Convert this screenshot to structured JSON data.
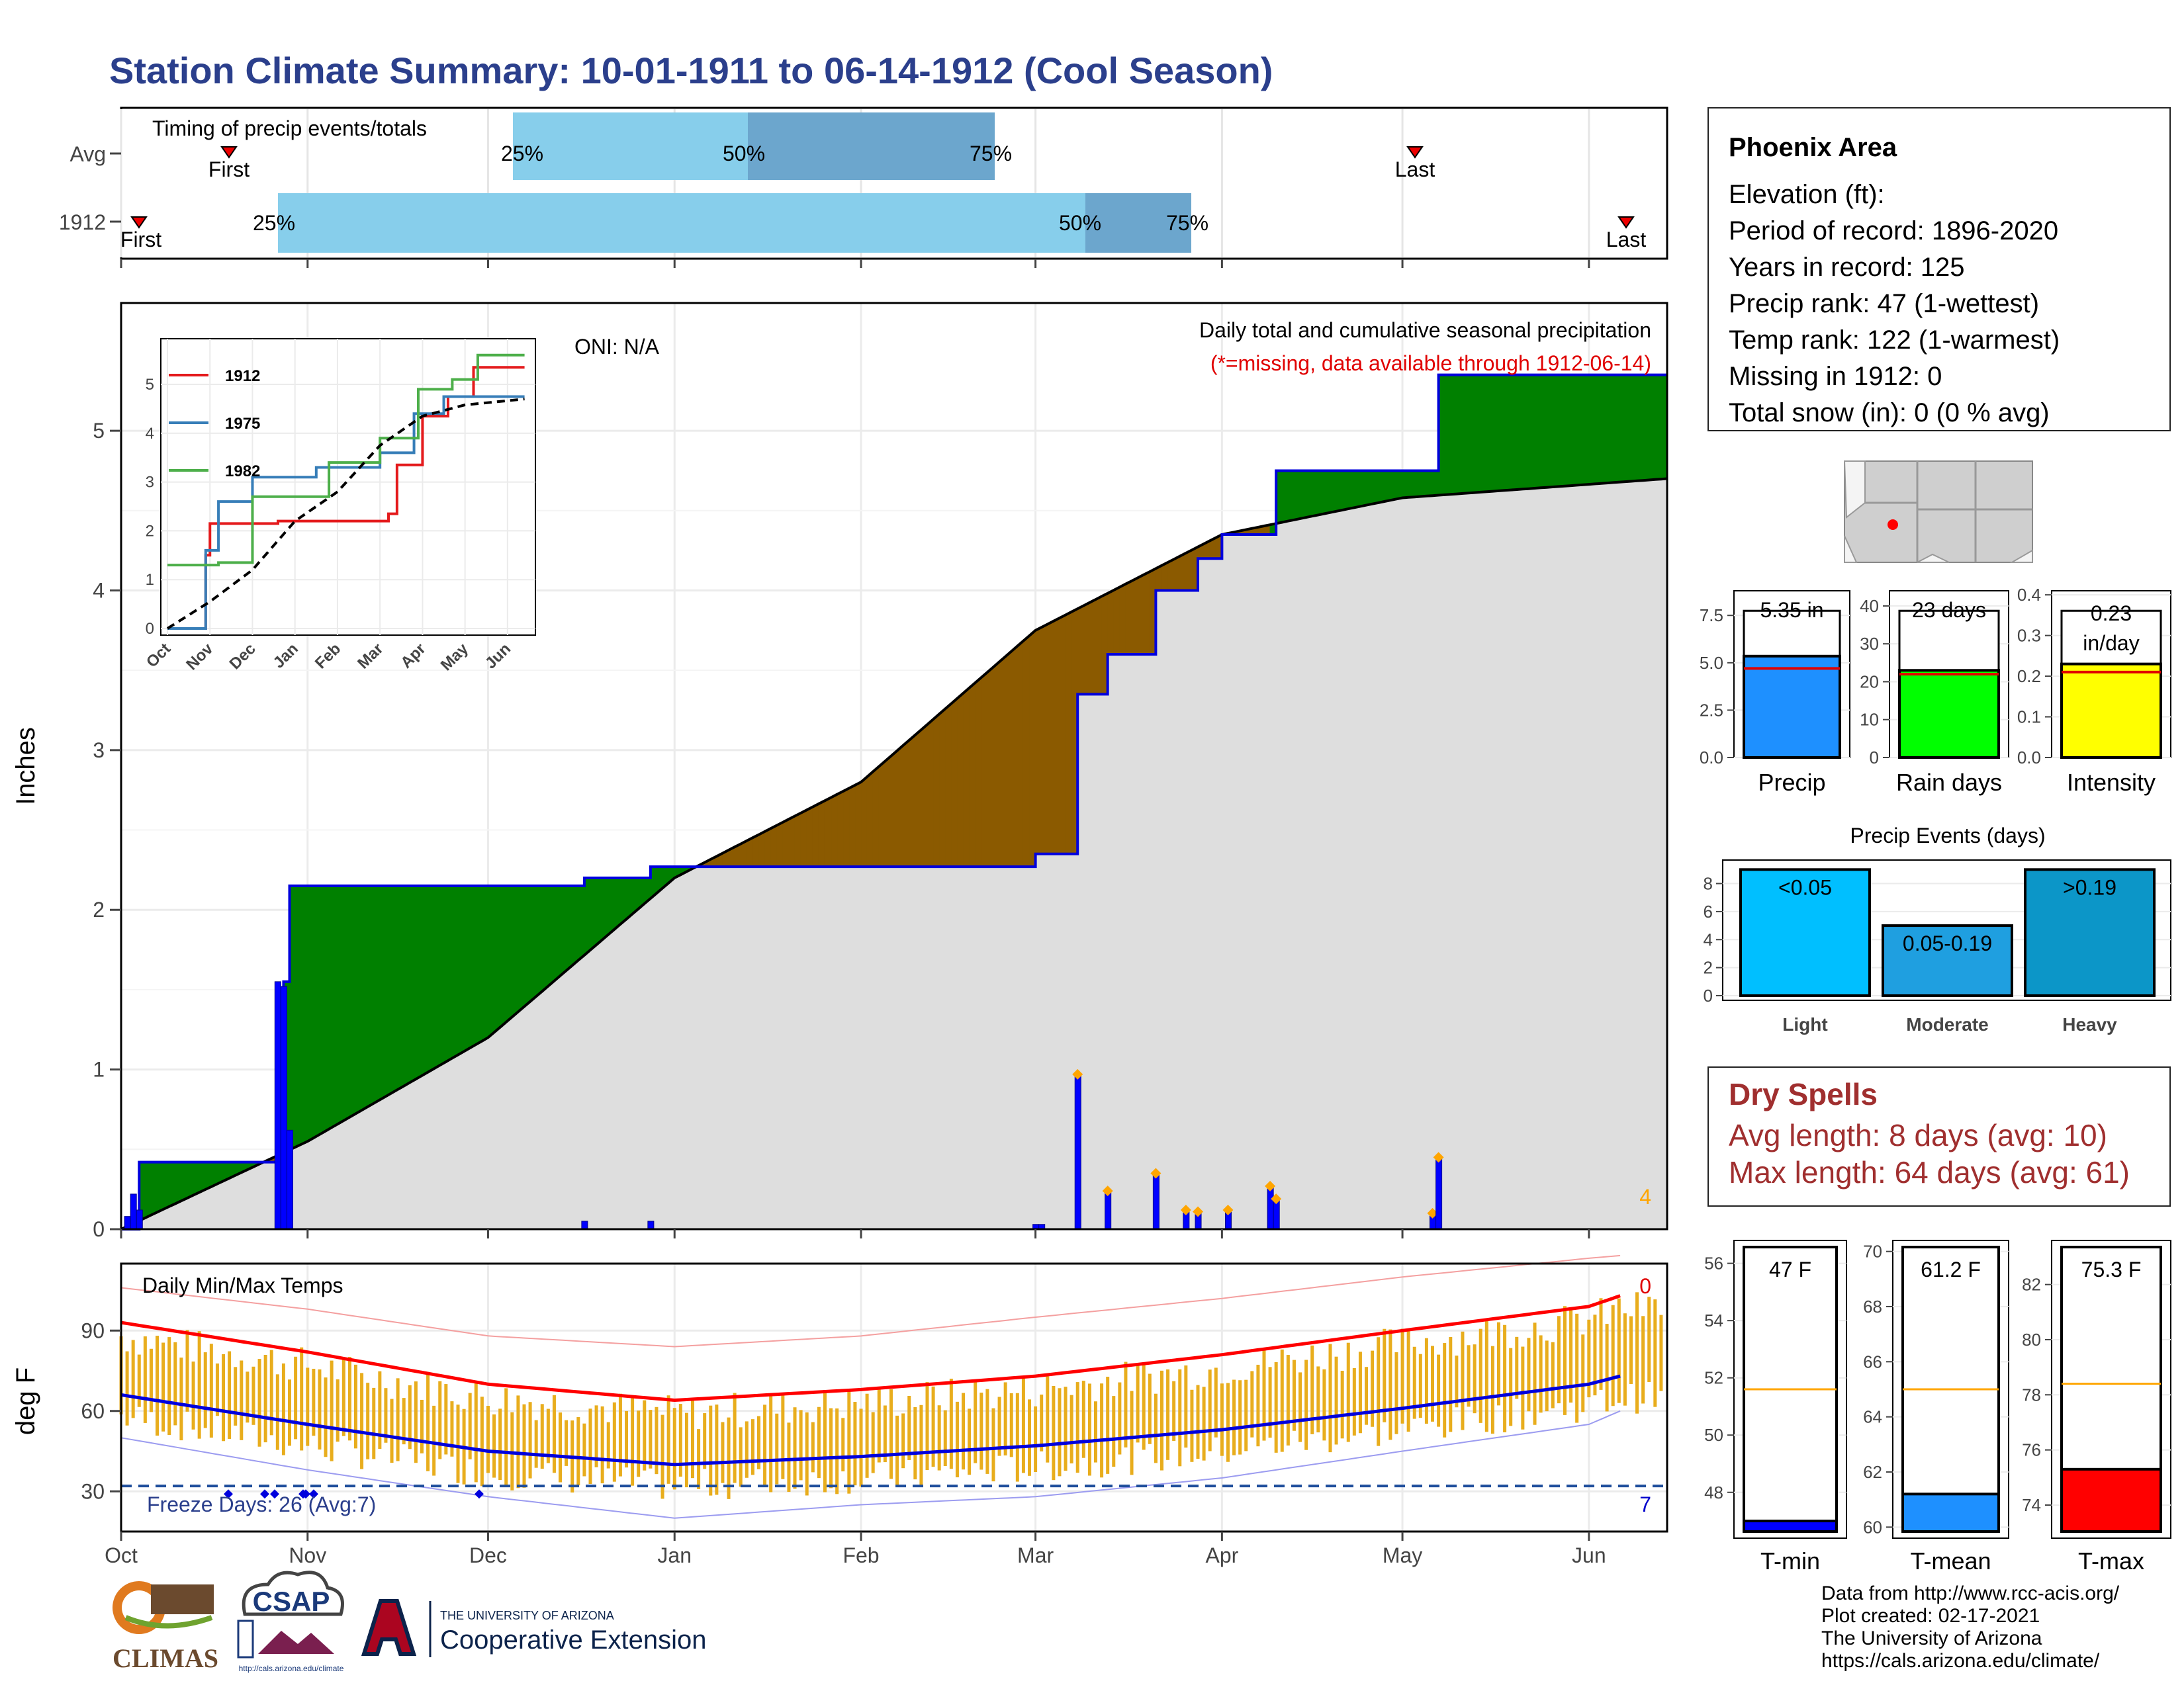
{
  "title": "Station Climate Summary: 10-01-1911 to 06-14-1912 (Cool Season)",
  "months": [
    "Oct",
    "Nov",
    "Dec",
    "Jan",
    "Feb",
    "Mar",
    "Apr",
    "May",
    "Jun"
  ],
  "timing": {
    "label": "Timing of precip events/totals",
    "rows": [
      {
        "name": "Avg",
        "first": "First",
        "last": "Last",
        "p25": "25%",
        "p50": "50%",
        "p75": "75%"
      },
      {
        "name": "1912",
        "first": "First",
        "last": "Last",
        "p25": "25%",
        "p50": "50%",
        "p75": "75%"
      }
    ]
  },
  "precip_panel": {
    "ylabel": "Inches",
    "oni": "ONI: N/A",
    "title": "Daily total and cumulative seasonal precipitation",
    "missing_note": "(*=missing, data available through 1912-06-14)",
    "corner_count": "4",
    "yticks": [
      "0",
      "1",
      "2",
      "3",
      "4",
      "5"
    ]
  },
  "inset": {
    "yticks": [
      "0",
      "1",
      "2",
      "3",
      "4",
      "5"
    ],
    "months": [
      "Oct",
      "Nov",
      "Dec",
      "Jan",
      "Feb",
      "Mar",
      "Apr",
      "May",
      "Jun"
    ],
    "legend": [
      "1912",
      "1975",
      "1982"
    ]
  },
  "temp_panel": {
    "ylabel": "deg F",
    "title": "Daily Min/Max Temps",
    "freeze_label": "Freeze Days: 26 (Avg:7)",
    "count_top": "0",
    "count_bottom": "7",
    "yticks": [
      "30",
      "60",
      "90"
    ]
  },
  "station": {
    "name": "Phoenix Area",
    "lines": [
      "Elevation (ft):",
      "Period of record: 1896-2020",
      "Years in record: 125",
      "Precip rank: 47 (1-wettest)",
      "Temp rank: 122 (1-warmest)",
      "Missing in 1912: 0",
      "Total snow (in): 0 (0 % avg)"
    ]
  },
  "bar_panels": [
    {
      "label": "Precip",
      "value_label": "5.35 in",
      "yticks": [
        "0.0",
        "2.5",
        "5.0",
        "7.5"
      ]
    },
    {
      "label": "Rain days",
      "value_label": "23 days",
      "yticks": [
        "0",
        "10",
        "20",
        "30",
        "40"
      ]
    },
    {
      "label": "Intensity",
      "value_label": "0.23 in/day",
      "value_line1": "0.23",
      "value_line2": "in/day",
      "yticks": [
        "0.0",
        "0.1",
        "0.2",
        "0.3",
        "0.4"
      ]
    }
  ],
  "events": {
    "title": "Precip Events (days)",
    "yticks": [
      "0",
      "2",
      "4",
      "6",
      "8"
    ],
    "bars": [
      {
        "label": "Light",
        "value_label": "<0.05",
        "color": "#00bfff"
      },
      {
        "label": "Moderate",
        "value_label": "0.05-0.19",
        "color": "#1f9fe0"
      },
      {
        "label": "Heavy",
        "value_label": ">0.19",
        "color": "#0c96c8"
      }
    ]
  },
  "dry_spells": {
    "title": "Dry Spells",
    "avg": "Avg length: 8 days (avg: 10)",
    "max": "Max length: 64 days (avg: 61)"
  },
  "temp_bars": [
    {
      "label": "T-min",
      "value_label": "47 F",
      "yticks": [
        "48",
        "50",
        "52",
        "54",
        "56"
      ],
      "color": "#0000ff"
    },
    {
      "label": "T-mean",
      "value_label": "61.2 F",
      "yticks": [
        "60",
        "62",
        "64",
        "66",
        "68",
        "70"
      ],
      "color": "#1e90ff"
    },
    {
      "label": "T-max",
      "value_label": "75.3 F",
      "yticks": [
        "74",
        "76",
        "78",
        "80",
        "82"
      ],
      "color": "#ff0000"
    }
  ],
  "credits": [
    "Data from http://www.rcc-acis.org/",
    "Plot created: 02-17-2021",
    "The University of Arizona",
    "https://cals.arizona.edu/climate/"
  ],
  "logos": {
    "climas": "CLIMAS",
    "csap": "CSAP",
    "csap_url": "http://cals.arizona.edu/climate",
    "ua_line1": "THE UNIVERSITY OF ARIZONA",
    "ua_line2": "Cooperative Extension"
  },
  "chart_data": [
    {
      "type": "area",
      "name": "cumulative precip 1912 vs average",
      "x_unit": "date",
      "ylim": [
        0,
        5.8
      ],
      "ylabel": "Inches",
      "cumulative_1912": [
        {
          "date": "1911-10-01",
          "y": 0.0
        },
        {
          "date": "1911-10-04",
          "y": 0.42
        },
        {
          "date": "1911-10-28",
          "y": 1.55
        },
        {
          "date": "1911-10-29",
          "y": 2.15
        },
        {
          "date": "1911-12-17",
          "y": 2.2
        },
        {
          "date": "1911-12-28",
          "y": 2.27
        },
        {
          "date": "1912-03-01",
          "y": 2.35
        },
        {
          "date": "1912-03-08",
          "y": 3.35
        },
        {
          "date": "1912-03-13",
          "y": 3.6
        },
        {
          "date": "1912-03-21",
          "y": 4.0
        },
        {
          "date": "1912-03-28",
          "y": 4.2
        },
        {
          "date": "1912-04-01",
          "y": 4.35
        },
        {
          "date": "1912-04-10",
          "y": 4.75
        },
        {
          "date": "1912-05-07",
          "y": 5.35
        },
        {
          "date": "1912-06-14",
          "y": 5.35
        }
      ],
      "cumulative_avg": [
        {
          "date": "1911-10-01",
          "y": 0.0
        },
        {
          "date": "1911-11-01",
          "y": 0.55
        },
        {
          "date": "1911-12-01",
          "y": 1.2
        },
        {
          "date": "1912-01-01",
          "y": 2.2
        },
        {
          "date": "1912-02-01",
          "y": 2.8
        },
        {
          "date": "1912-03-01",
          "y": 3.75
        },
        {
          "date": "1912-04-01",
          "y": 4.35
        },
        {
          "date": "1912-05-01",
          "y": 4.58
        },
        {
          "date": "1912-06-14",
          "y": 4.7
        }
      ],
      "daily_precip": [
        {
          "date": "1911-10-02",
          "y": 0.08
        },
        {
          "date": "1911-10-03",
          "y": 0.22
        },
        {
          "date": "1911-10-04",
          "y": 0.12
        },
        {
          "date": "1911-10-27",
          "y": 1.55
        },
        {
          "date": "1911-10-28",
          "y": 1.52
        },
        {
          "date": "1911-10-29",
          "y": 0.62
        },
        {
          "date": "1911-12-17",
          "y": 0.05
        },
        {
          "date": "1911-12-28",
          "y": 0.05
        },
        {
          "date": "1912-03-01",
          "y": 0.03
        },
        {
          "date": "1912-03-02",
          "y": 0.03
        },
        {
          "date": "1912-03-08",
          "y": 0.97
        },
        {
          "date": "1912-03-13",
          "y": 0.24
        },
        {
          "date": "1912-03-21",
          "y": 0.35
        },
        {
          "date": "1912-03-26",
          "y": 0.12
        },
        {
          "date": "1912-03-28",
          "y": 0.11
        },
        {
          "date": "1912-04-02",
          "y": 0.12
        },
        {
          "date": "1912-04-09",
          "y": 0.27
        },
        {
          "date": "1912-04-10",
          "y": 0.19
        },
        {
          "date": "1912-05-06",
          "y": 0.1
        },
        {
          "date": "1912-05-07",
          "y": 0.45
        }
      ]
    },
    {
      "type": "line",
      "name": "inset cumulative comparison",
      "xlabels": [
        "Oct",
        "Nov",
        "Dec",
        "Jan",
        "Feb",
        "Mar",
        "Apr",
        "May",
        "Jun"
      ],
      "ylim": [
        0,
        5.7
      ],
      "series": [
        {
          "name": "1912",
          "color": "#e41a1c",
          "values": [
            {
              "m": 0,
              "y": 0
            },
            {
              "m": 0.9,
              "y": 1.5
            },
            {
              "m": 1.0,
              "y": 2.15
            },
            {
              "m": 2.6,
              "y": 2.2
            },
            {
              "m": 5.2,
              "y": 2.35
            },
            {
              "m": 5.4,
              "y": 3.35
            },
            {
              "m": 6.0,
              "y": 4.35
            },
            {
              "m": 6.6,
              "y": 4.75
            },
            {
              "m": 7.2,
              "y": 5.35
            },
            {
              "m": 8.4,
              "y": 5.35
            }
          ]
        },
        {
          "name": "1975",
          "color": "#377eb8",
          "values": [
            {
              "m": 0,
              "y": 0
            },
            {
              "m": 0.9,
              "y": 1.6
            },
            {
              "m": 1.2,
              "y": 2.6
            },
            {
              "m": 2.0,
              "y": 3.1
            },
            {
              "m": 3.5,
              "y": 3.3
            },
            {
              "m": 5.0,
              "y": 3.6
            },
            {
              "m": 5.8,
              "y": 4.4
            },
            {
              "m": 6.5,
              "y": 4.75
            },
            {
              "m": 7.2,
              "y": 4.75
            },
            {
              "m": 8.4,
              "y": 4.75
            }
          ]
        },
        {
          "name": "1982",
          "color": "#4daf4a",
          "values": [
            {
              "m": 0,
              "y": 1.3
            },
            {
              "m": 1.2,
              "y": 1.35
            },
            {
              "m": 2.0,
              "y": 2.7
            },
            {
              "m": 3.8,
              "y": 3.4
            },
            {
              "m": 5.0,
              "y": 3.9
            },
            {
              "m": 5.9,
              "y": 4.9
            },
            {
              "m": 6.7,
              "y": 5.1
            },
            {
              "m": 7.3,
              "y": 5.6
            },
            {
              "m": 8.4,
              "y": 5.6
            }
          ]
        },
        {
          "name": "avg",
          "color": "#000000",
          "dashed": true,
          "values": [
            {
              "m": 0,
              "y": 0
            },
            {
              "m": 1,
              "y": 0.55
            },
            {
              "m": 2,
              "y": 1.2
            },
            {
              "m": 3,
              "y": 2.2
            },
            {
              "m": 4,
              "y": 2.8
            },
            {
              "m": 5,
              "y": 3.75
            },
            {
              "m": 6,
              "y": 4.35
            },
            {
              "m": 7,
              "y": 4.58
            },
            {
              "m": 8.4,
              "y": 4.7
            }
          ]
        }
      ]
    },
    {
      "type": "bar",
      "name": "daily min/max temps",
      "ylim": [
        15,
        115
      ],
      "ylabel": "deg F",
      "freeze_line": 32,
      "normal_max": [
        {
          "m": 0,
          "y": 93
        },
        {
          "m": 1,
          "y": 82
        },
        {
          "m": 2,
          "y": 70
        },
        {
          "m": 3,
          "y": 64
        },
        {
          "m": 4,
          "y": 68
        },
        {
          "m": 5,
          "y": 73
        },
        {
          "m": 6,
          "y": 81
        },
        {
          "m": 7,
          "y": 90
        },
        {
          "m": 8,
          "y": 99
        },
        {
          "m": 8.4,
          "y": 103
        }
      ],
      "normal_min": [
        {
          "m": 0,
          "y": 66
        },
        {
          "m": 1,
          "y": 55
        },
        {
          "m": 2,
          "y": 45
        },
        {
          "m": 3,
          "y": 40
        },
        {
          "m": 4,
          "y": 43
        },
        {
          "m": 5,
          "y": 47
        },
        {
          "m": 6,
          "y": 53
        },
        {
          "m": 7,
          "y": 61
        },
        {
          "m": 8,
          "y": 70
        },
        {
          "m": 8.4,
          "y": 73
        }
      ],
      "record_max": [
        {
          "m": 0,
          "y": 106
        },
        {
          "m": 1,
          "y": 98
        },
        {
          "m": 2,
          "y": 88
        },
        {
          "m": 3,
          "y": 84
        },
        {
          "m": 4,
          "y": 88
        },
        {
          "m": 5,
          "y": 95
        },
        {
          "m": 6,
          "y": 102
        },
        {
          "m": 7,
          "y": 110
        },
        {
          "m": 8,
          "y": 117
        },
        {
          "m": 8.4,
          "y": 118
        }
      ],
      "record_min": [
        {
          "m": 0,
          "y": 50
        },
        {
          "m": 1,
          "y": 38
        },
        {
          "m": 2,
          "y": 28
        },
        {
          "m": 3,
          "y": 20
        },
        {
          "m": 4,
          "y": 25
        },
        {
          "m": 5,
          "y": 28
        },
        {
          "m": 6,
          "y": 35
        },
        {
          "m": 7,
          "y": 45
        },
        {
          "m": 8,
          "y": 55
        },
        {
          "m": 8.4,
          "y": 60
        }
      ],
      "freeze_days_1912": 26,
      "freeze_days_avg": 7
    },
    {
      "type": "bar",
      "name": "season summary bars",
      "categories": [
        "Precip",
        "Rain days",
        "Intensity"
      ],
      "values": [
        5.35,
        23,
        0.23
      ],
      "averages": [
        4.7,
        22,
        0.21
      ],
      "ylims": [
        [
          0,
          8.8
        ],
        [
          0,
          44
        ],
        [
          0,
          0.41
        ]
      ]
    },
    {
      "type": "bar",
      "name": "Precip Events (days)",
      "categories": [
        "Light",
        "Moderate",
        "Heavy"
      ],
      "values": [
        9,
        5,
        9
      ],
      "ylim": [
        0,
        9.3
      ]
    },
    {
      "type": "bar",
      "name": "seasonal temperature",
      "categories": [
        "T-min",
        "T-mean",
        "T-max"
      ],
      "values": [
        47,
        61.2,
        75.3
      ],
      "averages": [
        51.6,
        65.0,
        78.4
      ],
      "ylims": [
        [
          46.4,
          56.8
        ],
        [
          59.6,
          70.4
        ],
        [
          72.8,
          83.6
        ]
      ]
    }
  ]
}
